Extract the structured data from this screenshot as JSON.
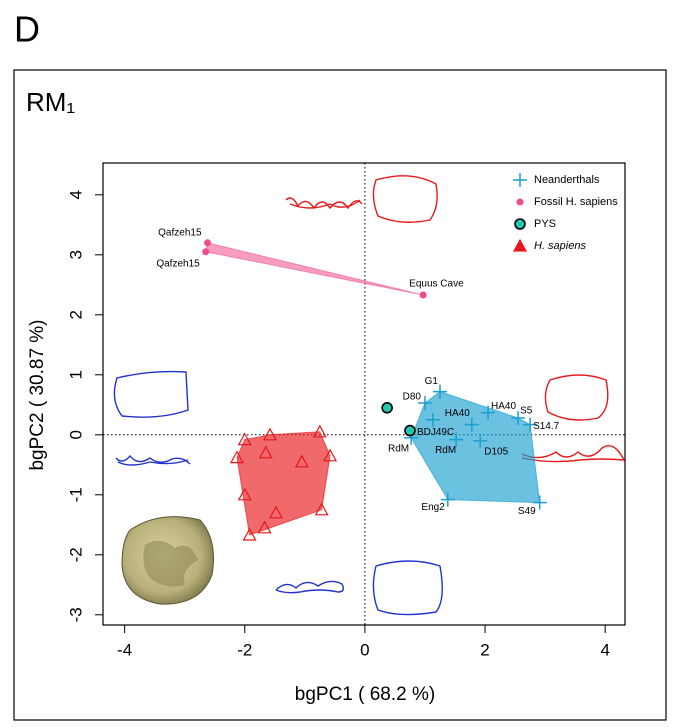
{
  "panel_label": "D",
  "chart_data": {
    "type": "scatter",
    "title": "RM₁",
    "x_label": "bgPC1 ( 68.2 %)",
    "y_label": "bgPC2 ( 30.87 %)",
    "xlim": [
      -4.36,
      4.33
    ],
    "ylim": [
      -3.17,
      4.53
    ],
    "xticks": [
      -4,
      -2,
      0,
      2,
      4
    ],
    "yticks": [
      -3,
      -2,
      -1,
      0,
      1,
      2,
      3,
      4
    ],
    "reference_lines": true,
    "hulls": true,
    "legend": "top-right",
    "series": [
      {
        "name": "Neanderthals",
        "marker": "cross",
        "color": "#1b9fd0",
        "x": [
          1.25,
          1.0,
          1.13,
          1.78,
          2.05,
          2.55,
          2.75,
          0.77,
          1.52,
          1.92,
          1.38,
          2.91
        ],
        "y": [
          0.72,
          0.53,
          0.25,
          0.17,
          0.37,
          0.28,
          0.17,
          -0.05,
          -0.08,
          -0.1,
          -1.08,
          -1.13
        ],
        "labels": [
          "G1",
          "D80",
          null,
          "HA40",
          "HA40",
          "S5",
          "S14.7",
          "RdM",
          "RdM",
          "D105",
          "Eng2",
          "S49"
        ]
      },
      {
        "name": "Fossil H. sapiens",
        "marker": "dot",
        "color": "#ee4c8c",
        "x": [
          -2.62,
          -2.65,
          0.97
        ],
        "y": [
          3.2,
          3.05,
          2.33
        ],
        "labels": [
          "Qafzeh15",
          "Qafzeh15",
          "Equus Cave"
        ]
      },
      {
        "name": "PYS",
        "marker": "circle",
        "color": "#22c7b0",
        "x": [
          0.37,
          0.75
        ],
        "y": [
          0.45,
          0.07
        ],
        "labels": [
          null,
          "BDJ49C"
        ]
      },
      {
        "name": "H. sapiens",
        "marker": "triangle",
        "color": "#e8191c",
        "x": [
          -2.0,
          -1.58,
          -2.13,
          -1.65,
          -1.05,
          -0.58,
          -0.75,
          -2.0,
          -1.48,
          -1.67,
          -1.92,
          -0.72
        ],
        "y": [
          -0.08,
          0.0,
          -0.38,
          -0.3,
          -0.45,
          -0.35,
          0.05,
          -1.0,
          -1.3,
          -1.55,
          -1.67,
          -1.25
        ],
        "labels": [
          null,
          null,
          null,
          null,
          null,
          null,
          null,
          null,
          null,
          null,
          null,
          null
        ]
      }
    ]
  }
}
